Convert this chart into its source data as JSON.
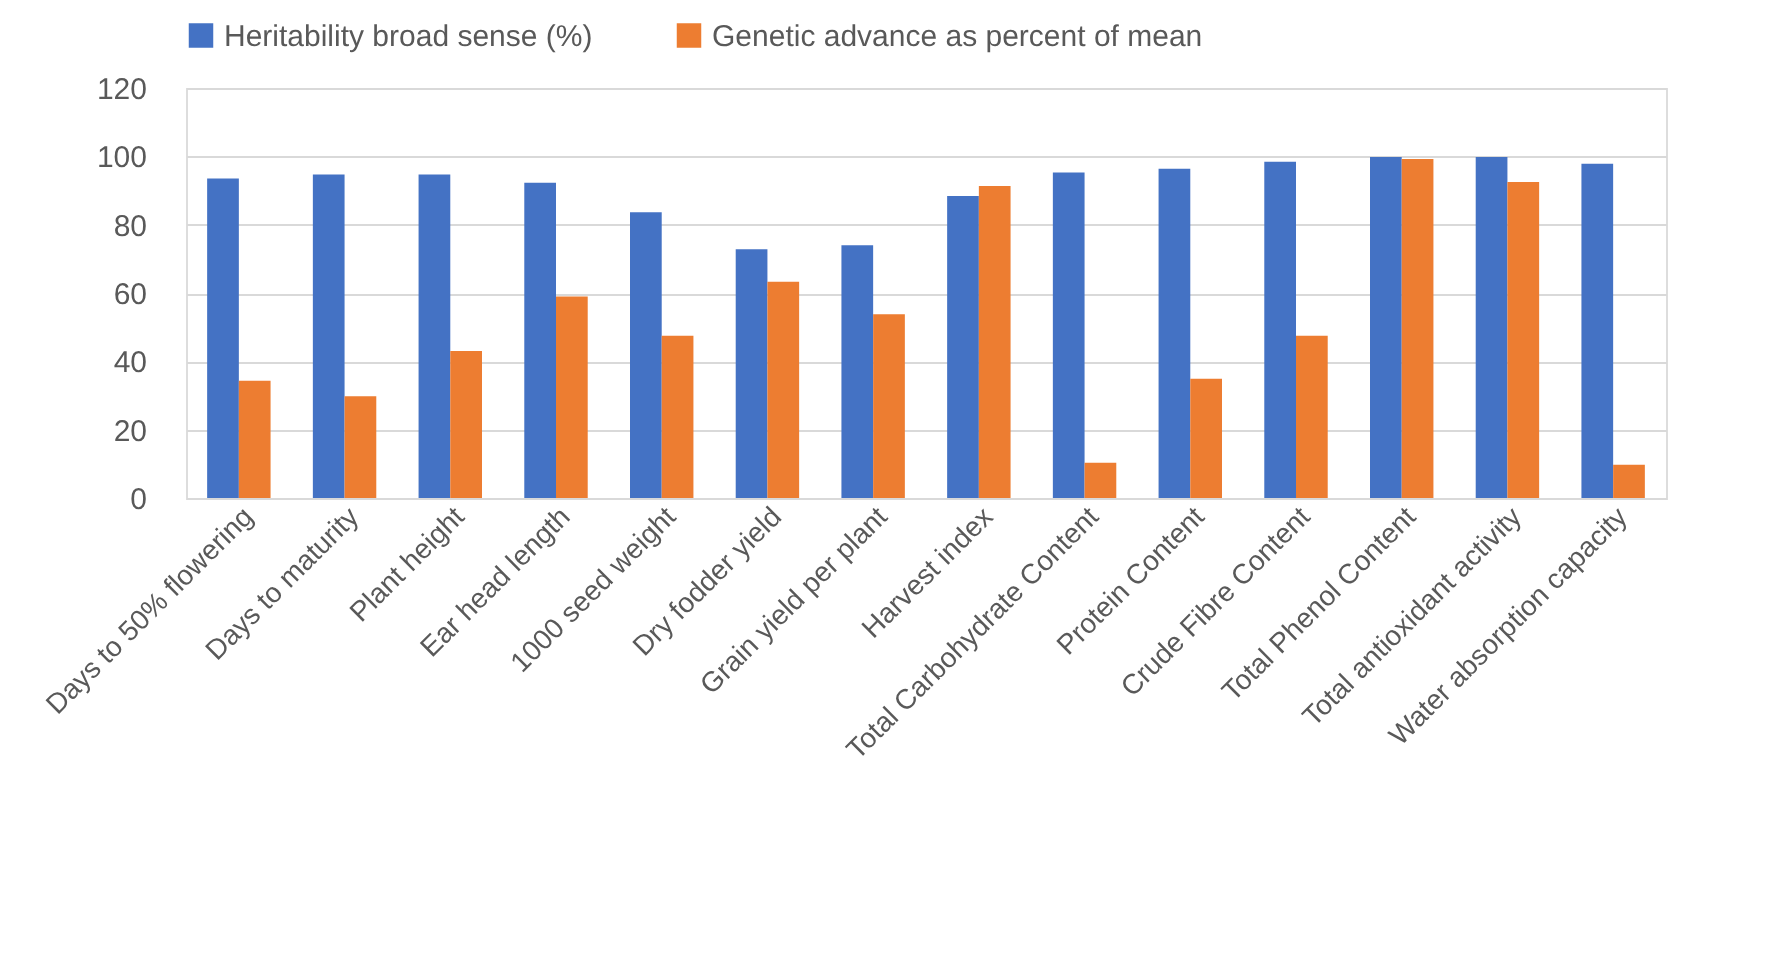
{
  "chart_data": {
    "type": "bar",
    "categories": [
      "Days to 50% flowering",
      "Days to maturity",
      "Plant height",
      "Ear head length",
      "1000 seed weight",
      "Dry fodder yield",
      "Grain yield per plant",
      "Harvest index",
      "Total Carbohydrate Content",
      "Protein Content",
      "Crude Fibre Content",
      "Total Phenol Content",
      "Total antioxidant activity",
      "Water absorption capacity"
    ],
    "series": [
      {
        "name": "Heritability broad sense (%)",
        "color": "#4472c4",
        "values": [
          93.5,
          94.7,
          94.7,
          92.3,
          83.6,
          72.8,
          74,
          88.4,
          95.3,
          96.4,
          98.4,
          99.8,
          99.8,
          97.8
        ]
      },
      {
        "name": "Genetic advance as percent of mean",
        "color": "#ed7d31",
        "values": [
          34.3,
          29.8,
          43,
          59,
          47.5,
          63.3,
          53.8,
          91.3,
          10.3,
          34.9,
          47.5,
          99.2,
          92.5,
          9.7
        ]
      }
    ],
    "ylim": [
      0,
      120
    ],
    "yticks": [
      0,
      20,
      40,
      60,
      80,
      100,
      120
    ],
    "grid": "y",
    "legend": "top"
  }
}
